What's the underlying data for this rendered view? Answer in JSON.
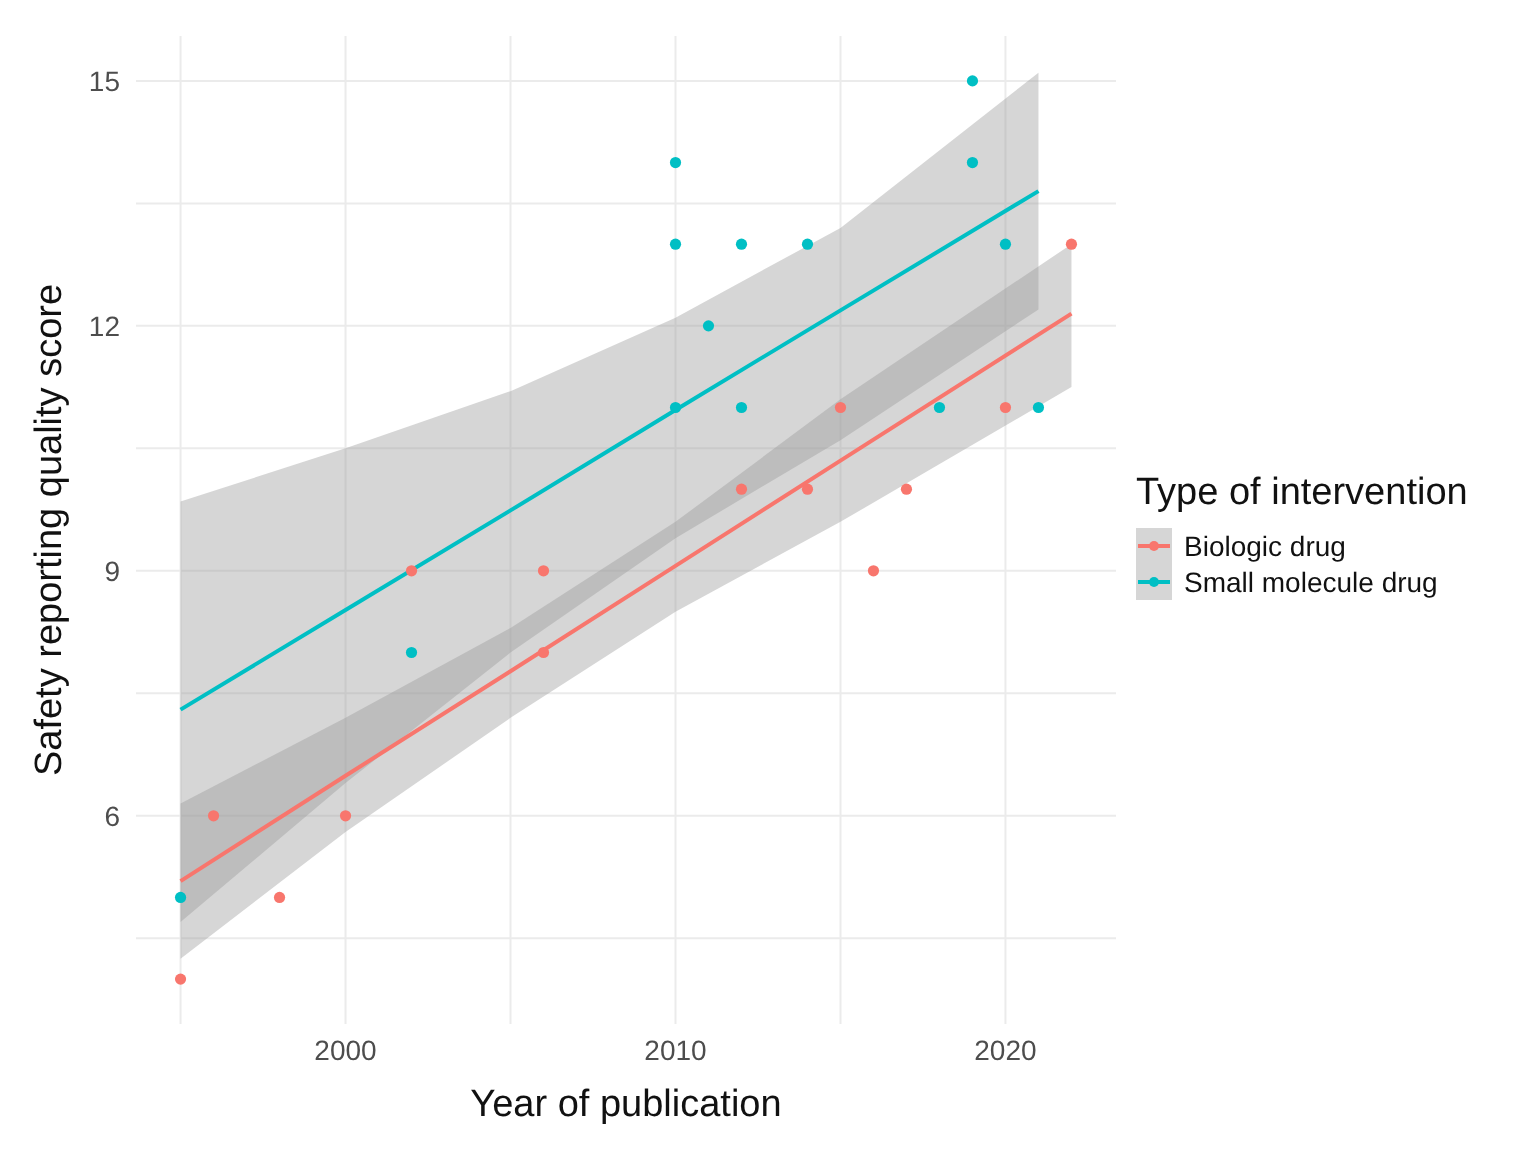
{
  "chart_data": {
    "type": "scatter",
    "xlabel": "Year of publication",
    "ylabel": "Safety reporting quality score",
    "legend_title": "Type of intervention",
    "legend": "right",
    "grid": true,
    "marker": "circle",
    "xlim": [
      1993.65,
      2023.35
    ],
    "xticks": [
      {
        "value": 1995,
        "label": null
      },
      2000,
      {
        "value": 2005,
        "label": null
      },
      2010,
      {
        "value": 2015,
        "label": null
      },
      2020
    ],
    "ylim": [
      3.45,
      15.55
    ],
    "yticks": [
      {
        "value": 4.5,
        "label": null
      },
      6,
      {
        "value": 7.5,
        "label": null
      },
      9,
      {
        "value": 10.5,
        "label": null
      },
      12,
      {
        "value": 13.5,
        "label": null
      },
      15
    ],
    "series": [
      {
        "name": "Biologic drug",
        "color": "#f8766d",
        "x": [
          1995,
          1996,
          1998,
          2000,
          2002,
          2006,
          2006,
          2012,
          2014,
          2015,
          2016,
          2017,
          2020,
          2022
        ],
        "values": [
          4,
          6,
          5,
          6,
          9,
          9,
          8,
          10,
          10,
          11,
          9,
          10,
          11,
          13
        ]
      },
      {
        "name": "Small molecule drug",
        "color": "#00bfc4",
        "x": [
          1995,
          2002,
          2010,
          2010,
          2010,
          2011,
          2012,
          2012,
          2014,
          2018,
          2019,
          2019,
          2020,
          2021
        ],
        "values": [
          5,
          8,
          14,
          13,
          11,
          12,
          13,
          11,
          13,
          11,
          15,
          14,
          13,
          11
        ]
      },
      {
        "type": "line",
        "color": "#f8766d",
        "marker": "none",
        "x": [
          1995,
          2000,
          2005,
          2010,
          2015,
          2022
        ],
        "values": [
          5.2,
          6.49,
          7.77,
          9.06,
          10.35,
          12.15
        ],
        "lower": [
          4.25,
          5.8,
          7.2,
          8.5,
          9.6,
          11.25
        ],
        "upper": [
          6.15,
          7.2,
          8.3,
          9.6,
          11.1,
          13.0
        ]
      },
      {
        "type": "line",
        "color": "#00bfc4",
        "marker": "none",
        "x": [
          1995,
          2000,
          2005,
          2010,
          2015,
          2021
        ],
        "values": [
          7.3,
          8.52,
          9.74,
          10.97,
          12.19,
          13.65
        ],
        "lower": [
          4.7,
          6.4,
          8.0,
          9.4,
          10.6,
          12.2
        ],
        "upper": [
          9.85,
          10.5,
          11.2,
          12.1,
          13.2,
          15.1
        ]
      }
    ]
  }
}
